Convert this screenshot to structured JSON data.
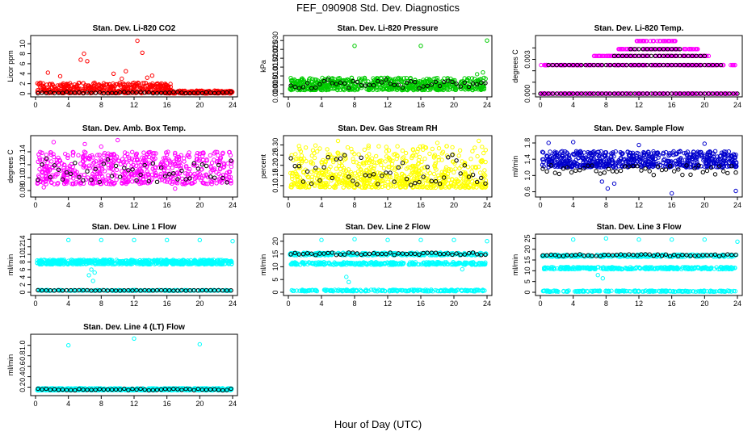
{
  "figure": {
    "title": "FEF_090908  Std. Dev. Diagnostics",
    "xlabel": "Hour of Day (UTC)"
  },
  "chart_data": [
    {
      "type": "scatter",
      "title": "Stan. Dev. Li-820 CO2",
      "ylabel": "Licor ppm",
      "xlim": [
        0,
        24
      ],
      "ylim": [
        0,
        11
      ],
      "xticks": [
        0,
        4,
        8,
        12,
        16,
        20,
        24
      ],
      "yticks": [
        0,
        2,
        4,
        6,
        8,
        10
      ],
      "ytick_labels": [
        "0",
        "2",
        "4",
        "6",
        "8",
        "10"
      ],
      "colors": {
        "main": "#ff0000",
        "hourly": "#000000"
      },
      "main": {
        "noise": {
          "x_range": [
            0.2,
            16.5
          ],
          "y_range": [
            0.1,
            2.2
          ],
          "count": 420
        },
        "noise2": {
          "x_range": [
            16,
            24
          ],
          "y_range": [
            0.05,
            0.6
          ],
          "count": 180
        },
        "outliers": [
          [
            1.5,
            4.2
          ],
          [
            3.0,
            3.5
          ],
          [
            5.5,
            6.8
          ],
          [
            5.9,
            8.0
          ],
          [
            6.3,
            6.5
          ],
          [
            9.5,
            4.0
          ],
          [
            10.5,
            3.0
          ],
          [
            12.4,
            10.6
          ],
          [
            13.0,
            8.2
          ],
          [
            13.6,
            3.2
          ],
          [
            14.2,
            3.6
          ],
          [
            11.0,
            4.5
          ]
        ]
      },
      "hourly": {
        "x_range": [
          0.3,
          23.8
        ],
        "y_range": [
          0.05,
          0.35
        ],
        "count": 48
      }
    },
    {
      "type": "scatter",
      "title": "Stan. Dev. Li-820 Pressure",
      "ylabel": "kPa",
      "xlim": [
        0,
        24
      ],
      "ylim": [
        0,
        0.031
      ],
      "xticks": [
        0,
        4,
        8,
        12,
        16,
        20,
        24
      ],
      "yticks": [
        0,
        0.005,
        0.01,
        0.015,
        0.02,
        0.025,
        0.03
      ],
      "ytick_labels": [
        "0.000",
        "0.005",
        "0.010",
        "0.015",
        "0.020",
        "0.025",
        "0.030"
      ],
      "colors": {
        "main": "#00cc00",
        "hourly": "#000000"
      },
      "main": {
        "noise": {
          "x_range": [
            0.2,
            23.9
          ],
          "y_range": [
            0.002,
            0.009
          ],
          "count": 650
        },
        "outliers": [
          [
            8.0,
            0.027
          ],
          [
            16.0,
            0.027
          ],
          [
            24.0,
            0.03
          ],
          [
            23.5,
            0.012
          ],
          [
            22.8,
            0.011
          ]
        ]
      },
      "hourly": {
        "x_range": [
          0.3,
          23.8
        ],
        "y_range": [
          0.003,
          0.008
        ],
        "count": 48
      }
    },
    {
      "type": "scatter",
      "title": "Stan. Dev. Li-820 Temp.",
      "ylabel": "degrees C",
      "xlim": [
        0,
        24
      ],
      "ylim": [
        0,
        0.0048
      ],
      "xticks": [
        0,
        4,
        8,
        12,
        16,
        20,
        24
      ],
      "yticks": [
        0,
        0.001,
        0.002,
        0.003,
        0.004
      ],
      "ytick_labels": [
        "0.000",
        "",
        "",
        "0.003",
        ""
      ],
      "colors": {
        "main": "#ff00ff",
        "hourly": "#000000"
      },
      "levels": [
        0,
        0.0025,
        0.0033,
        0.0039,
        0.0046
      ],
      "level_ranges": [
        [
          0,
          24
        ],
        [
          0,
          23.8
        ],
        [
          6.5,
          20.5
        ],
        [
          9.5,
          19.8
        ],
        [
          11.5,
          16.5
        ]
      ],
      "hourly_levels": [
        [
          0,
          0,
          24
        ],
        [
          0.0025,
          1,
          22
        ],
        [
          0.0033,
          9,
          20
        ],
        [
          0.0039,
          11,
          17
        ]
      ]
    },
    {
      "type": "scatter",
      "title": "Stan. Dev. Amb. Box Temp.",
      "ylabel": "degrees C",
      "xlim": [
        0,
        24
      ],
      "ylim": [
        0.075,
        0.16
      ],
      "xticks": [
        0,
        4,
        8,
        12,
        16,
        20,
        24
      ],
      "yticks": [
        0.08,
        0.1,
        0.12,
        0.14
      ],
      "ytick_labels": [
        "0.08",
        "0.10",
        "0.12",
        "0.14"
      ],
      "colors": {
        "main": "#ff00ff",
        "hourly": "#000000"
      },
      "main": {
        "noise": {
          "x_range": [
            0.2,
            23.9
          ],
          "y_range": [
            0.09,
            0.14
          ],
          "count": 600
        },
        "outliers": [
          [
            2.2,
            0.155
          ],
          [
            6.0,
            0.152
          ],
          [
            10.0,
            0.158
          ],
          [
            1.0,
            0.085
          ],
          [
            17.0,
            0.083
          ],
          [
            8.0,
            0.148
          ]
        ]
      },
      "hourly": {
        "x_range": [
          0.3,
          23.8
        ],
        "y_range": [
          0.09,
          0.13
        ],
        "count": 48
      }
    },
    {
      "type": "scatter",
      "title": "Stan. Dev. Gas Stream RH",
      "ylabel": "percent",
      "xlim": [
        0,
        24
      ],
      "ylim": [
        0.06,
        0.33
      ],
      "xticks": [
        0,
        4,
        8,
        12,
        16,
        20,
        24
      ],
      "yticks": [
        0.1,
        0.15,
        0.2,
        0.25,
        0.3
      ],
      "ytick_labels": [
        "0.10",
        "0.15",
        "0.20",
        "0.25",
        "0.30"
      ],
      "colors": {
        "main": "#ffff00",
        "hourly": "#000000"
      },
      "main": {
        "noise": {
          "x_range": [
            0.2,
            23.9
          ],
          "y_range": [
            0.09,
            0.16
          ],
          "count": 450
        },
        "noise2": {
          "x_range": [
            0.2,
            23.9
          ],
          "y_range": [
            0.16,
            0.3
          ],
          "count": 280
        },
        "outliers": [
          [
            6.0,
            0.32
          ],
          [
            18.0,
            0.31
          ],
          [
            23.0,
            0.32
          ]
        ]
      },
      "hourly": {
        "x_range": [
          0.3,
          23.8
        ],
        "y_range": [
          0.1,
          0.26
        ],
        "count": 48
      }
    },
    {
      "type": "scatter",
      "title": "Stan. Dev. Sample Flow",
      "ylabel": "ml/min",
      "xlim": [
        0,
        24
      ],
      "ylim": [
        0.55,
        1.9
      ],
      "xticks": [
        0,
        4,
        8,
        12,
        16,
        20,
        24
      ],
      "yticks": [
        0.6,
        1.0,
        1.4,
        1.8
      ],
      "ytick_labels": [
        "0.6",
        "1.0",
        "1.4",
        "1.8"
      ],
      "colors": {
        "main": "#0000cc",
        "hourly": "#000000"
      },
      "main": {
        "noise": {
          "x_range": [
            0.2,
            23.9
          ],
          "y_range": [
            1.2,
            1.6
          ],
          "count": 650
        },
        "outliers": [
          [
            1.0,
            1.8
          ],
          [
            16.0,
            0.56
          ],
          [
            23.8,
            0.62
          ],
          [
            8.2,
            0.68
          ],
          [
            9.0,
            0.8
          ],
          [
            7.5,
            0.85
          ],
          [
            4.0,
            1.82
          ],
          [
            12.0,
            1.75
          ],
          [
            20.0,
            1.78
          ]
        ]
      },
      "hourly": {
        "x_range": [
          0.3,
          23.8
        ],
        "y_range": [
          1.0,
          1.25
        ],
        "count": 48
      }
    },
    {
      "type": "scatter",
      "title": "Stan. Dev. Line 1 Flow",
      "ylabel": "ml/min",
      "xlim": [
        0,
        24
      ],
      "ylim": [
        0,
        14.5
      ],
      "xticks": [
        0,
        4,
        8,
        12,
        16,
        20,
        24
      ],
      "yticks": [
        0,
        2,
        4,
        6,
        8,
        10,
        12,
        14
      ],
      "ytick_labels": [
        "0",
        "2",
        "4",
        "6",
        "8",
        "10",
        "12",
        "14"
      ],
      "colors": {
        "main": "#00ffff",
        "hourly": "#000000"
      },
      "main": {
        "noise": {
          "x_range": [
            0.2,
            23.9
          ],
          "y_range": [
            7.4,
            8.6
          ],
          "count": 650
        },
        "noise2": {
          "x_range": [
            0.2,
            23.9
          ],
          "y_range": [
            0.4,
            0.6
          ],
          "count": 180
        },
        "outliers": [
          [
            4.0,
            13.8
          ],
          [
            8.0,
            13.8
          ],
          [
            12.0,
            13.8
          ],
          [
            16.0,
            13.8
          ],
          [
            20.0,
            13.8
          ],
          [
            24.0,
            13.5
          ],
          [
            7.0,
            3.0
          ],
          [
            6.5,
            4.5
          ],
          [
            7.2,
            5.2
          ],
          [
            6.8,
            6.0
          ]
        ]
      },
      "hourly": {
        "x_range": [
          0.3,
          23.8
        ],
        "y_range": [
          0.45,
          0.55
        ],
        "count": 48
      }
    },
    {
      "type": "scatter",
      "title": "Stan. Dev. Line 2 Flow",
      "ylabel": "ml/min",
      "xlim": [
        0,
        24
      ],
      "ylim": [
        0,
        21.5
      ],
      "xticks": [
        0,
        4,
        8,
        12,
        16,
        20,
        24
      ],
      "yticks": [
        0,
        5,
        10,
        15,
        20
      ],
      "ytick_labels": [
        "0",
        "5",
        "10",
        "15",
        "20"
      ],
      "colors": {
        "main": "#00ffff",
        "hourly": "#000000"
      },
      "main": {
        "noise": {
          "x_range": [
            0.2,
            23.9
          ],
          "y_range": [
            14.5,
            15.5
          ],
          "count": 300
        },
        "noise2": {
          "x_range": [
            0.2,
            23.9
          ],
          "y_range": [
            10.8,
            11.8
          ],
          "count": 300
        },
        "noise3": {
          "x_range": [
            0.2,
            23.9
          ],
          "y_range": [
            0.4,
            1.0
          ],
          "count": 200
        },
        "outliers": [
          [
            4.0,
            20.5
          ],
          [
            8.0,
            20.8
          ],
          [
            12.0,
            20.5
          ],
          [
            16.0,
            20.5
          ],
          [
            20.0,
            20.5
          ],
          [
            24.0,
            20.0
          ],
          [
            7.0,
            6.0
          ],
          [
            7.3,
            4.0
          ],
          [
            21.0,
            9.0
          ]
        ]
      },
      "hourly": {
        "x_range": [
          0.3,
          23.8
        ],
        "y_range": [
          14.6,
          15.6
        ],
        "count": 48
      }
    },
    {
      "type": "scatter",
      "title": "Stan. Dev. Line 3 Flow",
      "ylabel": "ml/min",
      "xlim": [
        0,
        24
      ],
      "ylim": [
        0,
        25.5
      ],
      "xticks": [
        0,
        4,
        8,
        12,
        16,
        20,
        24
      ],
      "yticks": [
        0,
        5,
        10,
        15,
        20,
        25
      ],
      "ytick_labels": [
        "0",
        "5",
        "10",
        "15",
        "20",
        "25"
      ],
      "colors": {
        "main": "#00ffff",
        "hourly": "#000000"
      },
      "main": {
        "noise": {
          "x_range": [
            0.2,
            23.9
          ],
          "y_range": [
            16.5,
            17.5
          ],
          "count": 300
        },
        "noise2": {
          "x_range": [
            0.2,
            23.9
          ],
          "y_range": [
            10.7,
            11.7
          ],
          "count": 300
        },
        "noise3": {
          "x_range": [
            0.2,
            23.9
          ],
          "y_range": [
            0.3,
            0.8
          ],
          "count": 200
        },
        "outliers": [
          [
            4.0,
            24.5
          ],
          [
            8.0,
            25.0
          ],
          [
            12.0,
            24.5
          ],
          [
            16.0,
            24.5
          ],
          [
            20.0,
            24.5
          ],
          [
            24.0,
            23.5
          ],
          [
            7.0,
            8.0
          ],
          [
            7.6,
            6.5
          ]
        ]
      },
      "hourly": {
        "x_range": [
          0.3,
          23.8
        ],
        "y_range": [
          16.7,
          17.7
        ],
        "count": 48
      }
    },
    {
      "type": "scatter",
      "title": "Stan. Dev. Line 4 (LT) Flow",
      "ylabel": "ml/min",
      "xlim": [
        0,
        24
      ],
      "ylim": [
        0.1,
        1.15
      ],
      "xticks": [
        0,
        4,
        8,
        12,
        16,
        20,
        24
      ],
      "yticks": [
        0.2,
        0.4,
        0.6,
        0.8,
        1.0
      ],
      "ytick_labels": [
        "0.2",
        "0.4",
        "0.6",
        "0.8",
        "1.0"
      ],
      "colors": {
        "main": "#00ffff",
        "hourly": "#000000"
      },
      "main": {
        "noise": {
          "x_range": [
            0.2,
            23.9
          ],
          "y_range": [
            0.14,
            0.18
          ],
          "count": 650
        },
        "outliers": [
          [
            4.0,
            1.0
          ],
          [
            12.0,
            1.13
          ],
          [
            20.0,
            1.02
          ]
        ]
      },
      "hourly": {
        "x_range": [
          0.3,
          23.8
        ],
        "y_range": [
          0.14,
          0.17
        ],
        "count": 48
      }
    }
  ]
}
